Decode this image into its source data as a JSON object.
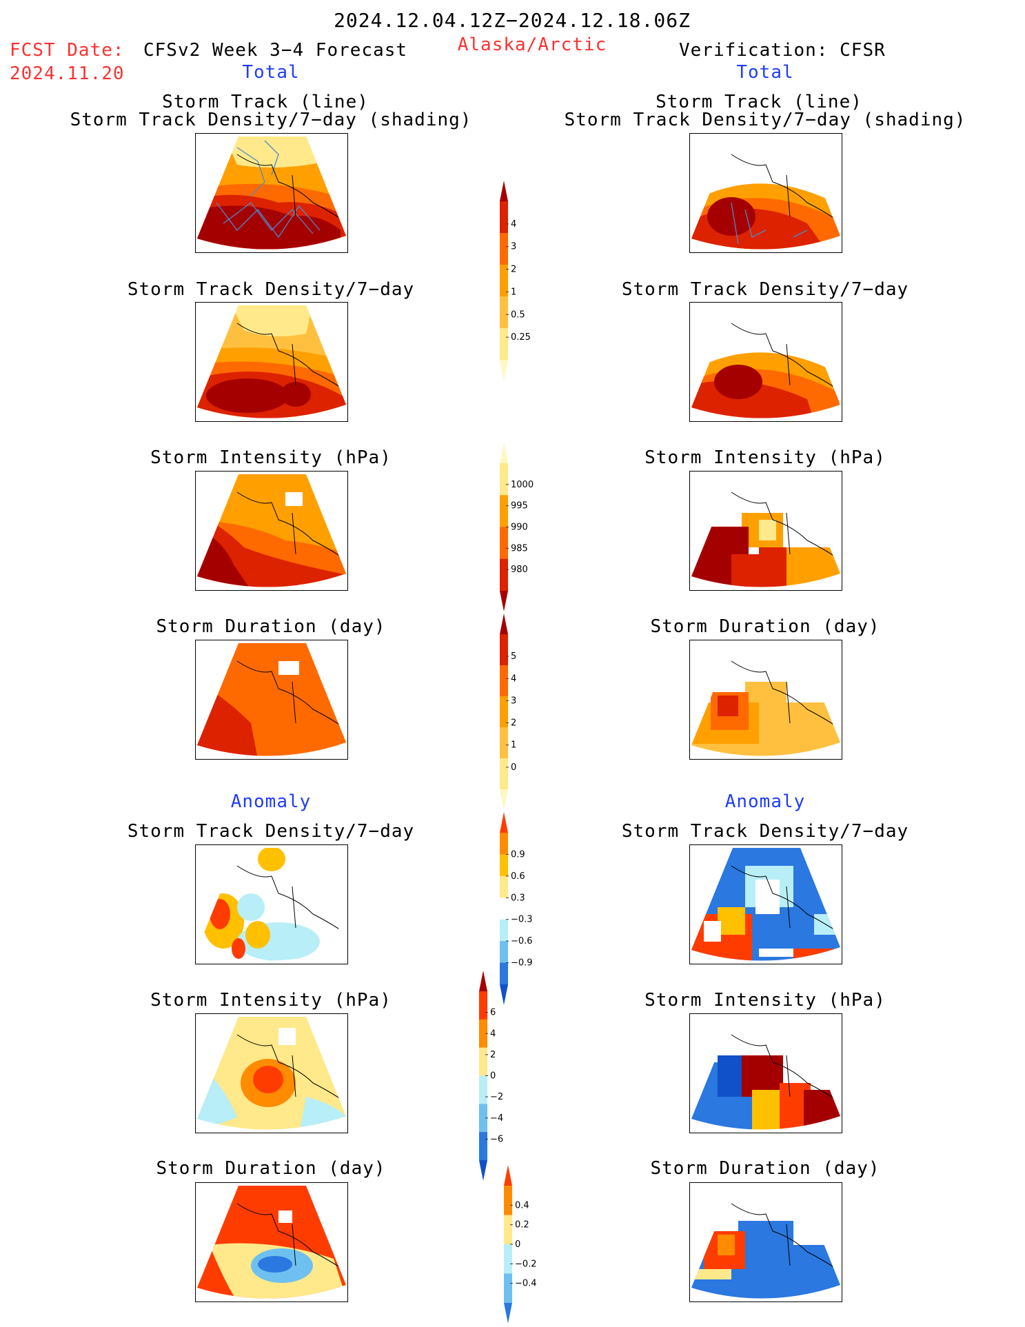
{
  "header": {
    "date_range": "2024.12.04.12Z−2024.12.18.06Z",
    "fcst_label": "FCST Date:",
    "fcst_date": "2024.11.20",
    "model_title": "CFSv2 Week 3−4 Forecast",
    "region": "Alaska/Arctic",
    "verification": "Verification: CFSR"
  },
  "sections": {
    "total_label": "Total",
    "anomaly_label": "Anomaly"
  },
  "panel_titles": {
    "track_line": "Storm Track (line)",
    "track_density_shading": "Storm Track Density/7−day (shading)",
    "track_density": "Storm Track Density/7−day",
    "intensity": "Storm Intensity (hPa)",
    "duration": "Storm Duration (day)"
  },
  "colorbars": {
    "density_total": {
      "labels": [
        "4",
        "3",
        "2",
        "1",
        "0.5",
        "0.25"
      ],
      "colors": [
        "#a50000",
        "#dd2200",
        "#ff6a00",
        "#ffa000",
        "#ffc040",
        "#ffe98a",
        "#fff8c0"
      ]
    },
    "intensity_total": {
      "labels": [
        "1000",
        "995",
        "990",
        "985",
        "980"
      ],
      "colors": [
        "#fff8c0",
        "#ffe98a",
        "#ffa000",
        "#ff6a00",
        "#dd2200",
        "#a50000"
      ]
    },
    "duration_total": {
      "labels": [
        "5",
        "4",
        "3",
        "2",
        "1",
        "0"
      ],
      "colors": [
        "#a50000",
        "#dd2200",
        "#ff6a00",
        "#ffa000",
        "#ffc040",
        "#ffe98a",
        "#fff8c0"
      ]
    },
    "density_anom": {
      "labels": [
        "0.9",
        "0.6",
        "0.3",
        "−0.3",
        "−0.6",
        "−0.9"
      ],
      "colors": [
        "#ff3c00",
        "#ff8c00",
        "#ffc000",
        "#ffe98a",
        "#ffffff",
        "#b8eef8",
        "#6ec0f0",
        "#2a78e0",
        "#1050c8"
      ]
    },
    "intensity_anom": {
      "labels": [
        "6",
        "4",
        "2",
        "0",
        "−2",
        "−4",
        "−6"
      ],
      "colors": [
        "#a50000",
        "#ff3c00",
        "#ff8c00",
        "#ffe98a",
        "#b8eef8",
        "#6ec0f0",
        "#2a78e0",
        "#1050c8"
      ]
    },
    "duration_anom": {
      "labels": [
        "0.4",
        "0.2",
        "0",
        "−0.2",
        "−0.4"
      ],
      "colors": [
        "#ff3c00",
        "#ff8c00",
        "#ffe98a",
        "#b8eef8",
        "#6ec0f0",
        "#2a78e0"
      ]
    }
  }
}
